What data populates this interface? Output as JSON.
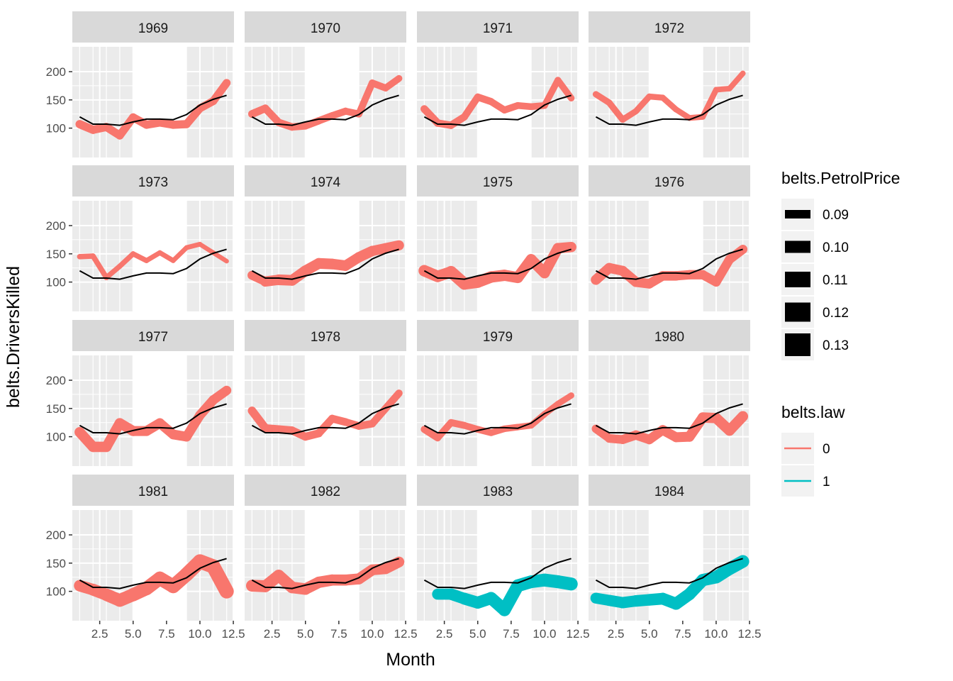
{
  "chart_data": {
    "type": "line",
    "facet_by": "year",
    "xlabel": "Month",
    "ylabel": "belts.DriversKilled",
    "x_ticks": [
      2.5,
      5.0,
      7.5,
      10.0,
      12.5
    ],
    "x_tick_labels": [
      "2.5",
      "5.0",
      "7.5",
      "10.0",
      "12.5"
    ],
    "xlim": [
      0.45,
      12.55
    ],
    "y_ticks": [
      100,
      150,
      200
    ],
    "y_tick_labels": [
      "100",
      "150",
      "200"
    ],
    "ylim": [
      48,
      244
    ],
    "grid": true,
    "shaded_months": [
      [
        5,
        9
      ]
    ],
    "reference_line": {
      "color": "#000000",
      "months": [
        1,
        2,
        3,
        4,
        5,
        6,
        7,
        8,
        9,
        10,
        11,
        12
      ],
      "values": [
        120,
        107,
        107,
        105,
        111,
        116,
        116,
        115,
        124,
        141,
        151,
        158
      ]
    },
    "legend": {
      "placement": "right",
      "size_title": "belts.PetrolPrice",
      "size_entries": [
        "0.09",
        "0.10",
        "0.11",
        "0.12",
        "0.13"
      ],
      "color_title": "belts.law",
      "color_entries": [
        {
          "label": "0",
          "color": "#F8766D"
        },
        {
          "label": "1",
          "color": "#00BFC4"
        }
      ]
    },
    "facets": [
      {
        "label": "1969",
        "values": [
          107,
          97,
          102,
          87,
          119,
          106,
          110,
          106,
          107,
          135,
          148,
          180
        ],
        "law": [
          0,
          0,
          0,
          0,
          0,
          0,
          0,
          0,
          0,
          0,
          0,
          0
        ],
        "petrol": [
          0.102,
          0.101,
          0.101,
          0.101,
          0.101,
          0.101,
          0.101,
          0.101,
          0.1,
          0.1,
          0.1,
          0.1
        ]
      },
      {
        "label": "1970",
        "values": [
          125,
          135,
          110,
          102,
          104,
          113,
          122,
          130,
          125,
          180,
          171,
          188
        ],
        "law": [
          0,
          0,
          0,
          0,
          0,
          0,
          0,
          0,
          0,
          0,
          0,
          0
        ],
        "petrol": [
          0.099,
          0.098,
          0.098,
          0.097,
          0.097,
          0.096,
          0.096,
          0.095,
          0.095,
          0.095,
          0.094,
          0.094
        ]
      },
      {
        "label": "1971",
        "values": [
          134,
          109,
          105,
          120,
          155,
          147,
          132,
          140,
          138,
          140,
          185,
          153
        ],
        "law": [
          0,
          0,
          0,
          0,
          0,
          0,
          0,
          0,
          0,
          0,
          0,
          0
        ],
        "petrol": [
          0.098,
          0.097,
          0.097,
          0.096,
          0.096,
          0.095,
          0.095,
          0.094,
          0.094,
          0.093,
          0.093,
          0.092
        ]
      },
      {
        "label": "1972",
        "values": [
          160,
          145,
          115,
          130,
          156,
          154,
          133,
          118,
          120,
          168,
          170,
          197
        ],
        "law": [
          0,
          0,
          0,
          0,
          0,
          0,
          0,
          0,
          0,
          0,
          0,
          0
        ],
        "petrol": [
          0.092,
          0.092,
          0.091,
          0.091,
          0.09,
          0.09,
          0.089,
          0.089,
          0.089,
          0.088,
          0.088,
          0.087
        ]
      },
      {
        "label": "1973",
        "values": [
          145,
          146,
          108,
          128,
          150,
          138,
          152,
          138,
          161,
          167,
          152,
          137
        ],
        "law": [
          0,
          0,
          0,
          0,
          0,
          0,
          0,
          0,
          0,
          0,
          0,
          0
        ],
        "petrol": [
          0.087,
          0.087,
          0.086,
          0.086,
          0.086,
          0.085,
          0.085,
          0.084,
          0.084,
          0.083,
          0.083,
          0.083
        ]
      },
      {
        "label": "1974",
        "values": [
          112,
          101,
          104,
          103,
          120,
          133,
          132,
          129,
          144,
          155,
          160,
          165
        ],
        "law": [
          0,
          0,
          0,
          0,
          0,
          0,
          0,
          0,
          0,
          0,
          0,
          0
        ],
        "petrol": [
          0.105,
          0.112,
          0.114,
          0.114,
          0.114,
          0.114,
          0.113,
          0.112,
          0.112,
          0.111,
          0.111,
          0.11
        ]
      },
      {
        "label": "1975",
        "values": [
          120,
          110,
          118,
          97,
          100,
          109,
          112,
          108,
          140,
          116,
          160,
          162
        ],
        "law": [
          0,
          0,
          0,
          0,
          0,
          0,
          0,
          0,
          0,
          0,
          0,
          0
        ],
        "petrol": [
          0.118,
          0.117,
          0.12,
          0.119,
          0.118,
          0.117,
          0.116,
          0.115,
          0.114,
          0.113,
          0.112,
          0.111
        ]
      },
      {
        "label": "1976",
        "values": [
          104,
          125,
          120,
          100,
          97,
          111,
          111,
          113,
          113,
          100,
          140,
          158
        ],
        "law": [
          0,
          0,
          0,
          0,
          0,
          0,
          0,
          0,
          0,
          0,
          0,
          0
        ],
        "petrol": [
          0.111,
          0.11,
          0.11,
          0.109,
          0.108,
          0.108,
          0.107,
          0.107,
          0.106,
          0.106,
          0.106,
          0.105
        ]
      },
      {
        "label": "1977",
        "values": [
          108,
          82,
          82,
          124,
          110,
          110,
          124,
          104,
          100,
          138,
          165,
          182
        ],
        "law": [
          0,
          0,
          0,
          0,
          0,
          0,
          0,
          0,
          0,
          0,
          0,
          0
        ],
        "petrol": [
          0.112,
          0.112,
          0.111,
          0.111,
          0.11,
          0.11,
          0.109,
          0.109,
          0.108,
          0.108,
          0.107,
          0.107
        ]
      },
      {
        "label": "1978",
        "values": [
          146,
          115,
          113,
          111,
          100,
          106,
          132,
          126,
          119,
          123,
          150,
          177
        ],
        "law": [
          0,
          0,
          0,
          0,
          0,
          0,
          0,
          0,
          0,
          0,
          0,
          0
        ],
        "petrol": [
          0.102,
          0.101,
          0.101,
          0.1,
          0.1,
          0.099,
          0.099,
          0.098,
          0.098,
          0.097,
          0.097,
          0.096
        ]
      },
      {
        "label": "1979",
        "values": [
          113,
          98,
          125,
          120,
          113,
          107,
          114,
          117,
          120,
          140,
          158,
          173
        ],
        "law": [
          0,
          0,
          0,
          0,
          0,
          0,
          0,
          0,
          0,
          0,
          0,
          0
        ],
        "petrol": [
          0.096,
          0.095,
          0.095,
          0.094,
          0.094,
          0.093,
          0.093,
          0.092,
          0.092,
          0.091,
          0.091,
          0.09
        ]
      },
      {
        "label": "1980",
        "values": [
          114,
          97,
          95,
          103,
          95,
          112,
          99,
          100,
          134,
          133,
          111,
          136
        ],
        "law": [
          0,
          0,
          0,
          0,
          0,
          0,
          0,
          0,
          0,
          0,
          0,
          0
        ],
        "petrol": [
          0.102,
          0.104,
          0.106,
          0.107,
          0.108,
          0.109,
          0.11,
          0.111,
          0.112,
          0.113,
          0.113,
          0.114
        ]
      },
      {
        "label": "1981",
        "values": [
          110,
          103,
          94,
          84,
          94,
          105,
          123,
          109,
          130,
          153,
          144,
          100
        ],
        "law": [
          0,
          0,
          0,
          0,
          0,
          0,
          0,
          0,
          0,
          0,
          0,
          0
        ],
        "petrol": [
          0.118,
          0.12,
          0.123,
          0.125,
          0.127,
          0.128,
          0.129,
          0.13,
          0.131,
          0.132,
          0.132,
          0.133
        ]
      },
      {
        "label": "1982",
        "values": [
          110,
          109,
          128,
          107,
          104,
          116,
          120,
          120,
          122,
          138,
          140,
          152
        ],
        "law": [
          0,
          0,
          0,
          0,
          0,
          0,
          0,
          0,
          0,
          0,
          0,
          0
        ],
        "petrol": [
          0.12,
          0.119,
          0.119,
          0.118,
          0.117,
          0.117,
          0.116,
          0.115,
          0.115,
          0.114,
          0.114,
          0.113
        ]
      },
      {
        "label": "1983",
        "values": [
          null,
          95,
          95,
          87,
          80,
          88,
          67,
          110,
          117,
          120,
          117,
          113
        ],
        "law": [
          0,
          1,
          1,
          1,
          1,
          1,
          1,
          1,
          1,
          1,
          1,
          1
        ],
        "petrol": [
          0.113,
          0.116,
          0.118,
          0.12,
          0.121,
          0.122,
          0.123,
          0.124,
          0.124,
          0.125,
          0.125,
          0.126
        ]
      },
      {
        "label": "1984",
        "values": [
          88,
          84,
          80,
          83,
          85,
          87,
          78,
          95,
          120,
          125,
          140,
          153
        ],
        "law": [
          1,
          1,
          1,
          1,
          1,
          1,
          1,
          1,
          1,
          1,
          1,
          1
        ],
        "petrol": [
          0.115,
          0.116,
          0.117,
          0.118,
          0.119,
          0.12,
          0.121,
          0.121,
          0.122,
          0.123,
          0.124,
          0.125
        ]
      }
    ]
  }
}
